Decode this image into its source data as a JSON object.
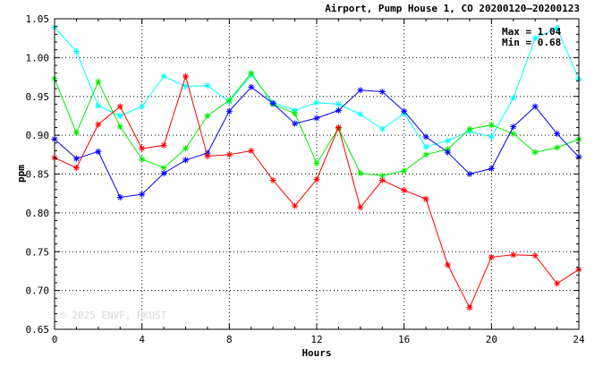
{
  "chart_data": {
    "type": "line",
    "title": "Airport, Pump House 1, CO 20200120–20200123",
    "xlabel": "Hours",
    "ylabel": "ppm",
    "xlim": [
      0,
      24
    ],
    "ylim": [
      0.65,
      1.05
    ],
    "xticks": [
      0,
      4,
      8,
      12,
      16,
      20,
      24
    ],
    "yticks": [
      0.65,
      0.7,
      0.75,
      0.8,
      0.85,
      0.9,
      0.95,
      1.0,
      1.05
    ],
    "grid": true,
    "annotations": {
      "max": "Max = 1.04",
      "min": "Min = 0.68"
    },
    "watermark": "© 2025  ENVF, HKUST",
    "x": [
      0,
      1,
      2,
      3,
      4,
      5,
      6,
      7,
      8,
      9,
      10,
      11,
      12,
      13,
      14,
      15,
      16,
      17,
      18,
      19,
      20,
      21,
      22,
      23,
      24
    ],
    "series": [
      {
        "color": "#00ffff",
        "values": [
          1.039,
          1.008,
          0.938,
          0.925,
          0.937,
          0.976,
          0.963,
          0.964,
          0.943,
          0.978,
          0.942,
          0.932,
          0.942,
          0.94,
          0.927,
          0.908,
          0.928,
          0.885,
          0.893,
          0.905,
          0.898,
          0.948,
          1.025,
          1.038,
          0.972
        ]
      },
      {
        "color": "#00ee00",
        "values": [
          0.973,
          0.903,
          0.969,
          0.911,
          0.869,
          0.858,
          0.883,
          0.925,
          0.945,
          0.98,
          0.94,
          0.928,
          0.864,
          0.909,
          0.851,
          0.848,
          0.854,
          0.875,
          0.882,
          0.908,
          0.913,
          0.902,
          0.878,
          0.884,
          0.895
        ]
      },
      {
        "color": "#0000ff",
        "values": [
          0.895,
          0.87,
          0.879,
          0.82,
          0.824,
          0.851,
          0.868,
          0.877,
          0.931,
          0.962,
          0.941,
          0.915,
          0.922,
          0.932,
          0.958,
          0.956,
          0.931,
          0.898,
          0.878,
          0.85,
          0.857,
          0.911,
          0.937,
          0.902,
          0.872
        ]
      },
      {
        "color": "#ff0000",
        "values": [
          0.871,
          0.858,
          0.914,
          0.937,
          0.883,
          0.887,
          0.976,
          0.873,
          0.875,
          0.88,
          0.842,
          0.809,
          0.843,
          0.91,
          0.807,
          0.842,
          0.829,
          0.818,
          0.733,
          0.678,
          0.743,
          0.746,
          0.745,
          0.709,
          0.727
        ]
      }
    ]
  }
}
